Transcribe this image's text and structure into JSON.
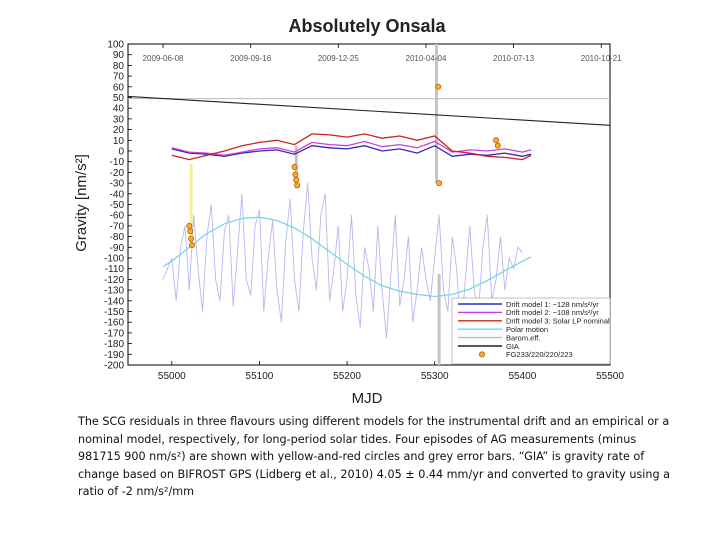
{
  "chart_data": {
    "type": "line",
    "title": "Absolutely Onsala",
    "xlabel": "MJD",
    "ylabel": "Gravity [nm/s²]",
    "xlim": [
      54950,
      55500
    ],
    "ylim": [
      -200,
      100
    ],
    "x_ticks": [
      "55000",
      "55100",
      "55200",
      "55300",
      "55400",
      "55500"
    ],
    "y_ticks": [
      "100",
      "90",
      "80",
      "70",
      "60",
      "50",
      "40",
      "30",
      "20",
      "10",
      "0",
      "-10",
      "-20",
      "-30",
      "-40",
      "-50",
      "-60",
      "-70",
      "-80",
      "-90",
      "-100",
      "-110",
      "-120",
      "-130",
      "-140",
      "-150",
      "-160",
      "-170",
      "-180",
      "-190",
      "-200"
    ],
    "top_axis_dates": [
      {
        "label": "2009-06-08",
        "mjd": 54990
      },
      {
        "label": "2009-09-16",
        "mjd": 55090
      },
      {
        "label": "2009-12-25",
        "mjd": 55190
      },
      {
        "label": "2010-04-04",
        "mjd": 55290
      },
      {
        "label": "2010-07-13",
        "mjd": 55390
      },
      {
        "label": "2010-10-21",
        "mjd": 55490
      }
    ],
    "legend_position": "bottom-right",
    "series": [
      {
        "name": "Drift model 1: −128 nm/s²/yr",
        "color": "#2b2bb8",
        "x": [
          55000,
          55020,
          55040,
          55060,
          55080,
          55100,
          55120,
          55140,
          55160,
          55180,
          55200,
          55220,
          55240,
          55260,
          55280,
          55300,
          55320,
          55340,
          55360,
          55380,
          55400,
          55410
        ],
        "y": [
          2,
          -2,
          -3,
          -5,
          -2,
          0,
          1,
          -3,
          5,
          3,
          2,
          5,
          0,
          2,
          -2,
          5,
          -5,
          -3,
          -4,
          -2,
          -5,
          -3
        ]
      },
      {
        "name": "Drift model 2: −108 nm/s²/yr",
        "color": "#d13fd1",
        "x": [
          55000,
          55020,
          55040,
          55060,
          55080,
          55100,
          55120,
          55140,
          55160,
          55180,
          55200,
          55220,
          55240,
          55260,
          55280,
          55300,
          55320,
          55340,
          55360,
          55380,
          55400,
          55410
        ],
        "y": [
          3,
          -1,
          -2,
          -4,
          -1,
          2,
          3,
          -1,
          8,
          6,
          5,
          9,
          4,
          6,
          3,
          9,
          -1,
          1,
          0,
          2,
          -1,
          1
        ]
      },
      {
        "name": "Drift model 3: Solar LP nominal",
        "color": "#cc2222",
        "x": [
          55000,
          55020,
          55040,
          55060,
          55080,
          55100,
          55120,
          55140,
          55160,
          55180,
          55200,
          55220,
          55240,
          55260,
          55280,
          55300,
          55320,
          55340,
          55360,
          55380,
          55400,
          55410
        ],
        "y": [
          -4,
          -8,
          -4,
          0,
          5,
          8,
          10,
          6,
          16,
          15,
          13,
          16,
          12,
          14,
          10,
          14,
          0,
          -2,
          -5,
          -6,
          -8,
          -4
        ]
      },
      {
        "name": "Polar motion",
        "color": "#7fd3e3",
        "x": [
          54990,
          55000,
          55020,
          55040,
          55060,
          55080,
          55100,
          55120,
          55140,
          55160,
          55180,
          55200,
          55220,
          55240,
          55260,
          55280,
          55300,
          55320,
          55340,
          55360,
          55380,
          55400,
          55410
        ],
        "y": [
          -108,
          -103,
          -90,
          -77,
          -68,
          -63,
          -62,
          -65,
          -72,
          -82,
          -94,
          -106,
          -117,
          -126,
          -131,
          -134,
          -136,
          -134,
          -129,
          -121,
          -112,
          -103,
          -99
        ]
      },
      {
        "name": "Barom.eff.",
        "color": "#b7b7ee",
        "x": [
          54990,
          55000,
          55005,
          55010,
          55015,
          55020,
          55025,
          55030,
          55035,
          55040,
          55045,
          55050,
          55055,
          55060,
          55065,
          55070,
          55075,
          55080,
          55085,
          55090,
          55095,
          55100,
          55105,
          55110,
          55115,
          55120,
          55125,
          55130,
          55135,
          55140,
          55145,
          55150,
          55155,
          55160,
          55165,
          55170,
          55175,
          55180,
          55185,
          55190,
          55195,
          55200,
          55205,
          55210,
          55215,
          55220,
          55225,
          55230,
          55235,
          55240,
          55245,
          55250,
          55255,
          55260,
          55265,
          55270,
          55275,
          55280,
          55285,
          55290,
          55295,
          55300,
          55305,
          55310,
          55315,
          55320,
          55325,
          55330,
          55335,
          55340,
          55345,
          55350,
          55355,
          55360,
          55365,
          55370,
          55375,
          55380,
          55385,
          55390,
          55395,
          55400
        ],
        "y": [
          -120,
          -100,
          -140,
          -90,
          -70,
          -130,
          -60,
          -110,
          -150,
          -80,
          -50,
          -120,
          -140,
          -75,
          -60,
          -145,
          -95,
          -40,
          -120,
          -135,
          -70,
          -55,
          -150,
          -100,
          -65,
          -130,
          -160,
          -85,
          -45,
          -120,
          -150,
          -75,
          -30,
          -100,
          -130,
          -60,
          -40,
          -140,
          -110,
          -70,
          -150,
          -120,
          -60,
          -135,
          -165,
          -90,
          -110,
          -150,
          -70,
          -130,
          -175,
          -115,
          -60,
          -145,
          -120,
          -80,
          -160,
          -130,
          -90,
          -120,
          -140,
          -100,
          -60,
          -130,
          -150,
          -80,
          -110,
          -170,
          -120,
          -70,
          -130,
          -150,
          -90,
          -60,
          -140,
          -120,
          -80,
          -130,
          -100,
          -110,
          -90,
          -95
        ]
      },
      {
        "name": "GIA",
        "color": "#222222",
        "x": [
          54950,
          55500
        ],
        "y": [
          51,
          24
        ]
      },
      {
        "name": "FG233/220/220/223",
        "color": "#f2b227",
        "x": [
          55020,
          55021,
          55022,
          55023,
          55140,
          55141,
          55142,
          55143,
          55304,
          55305,
          55370,
          55372
        ],
        "y": [
          -70,
          -75,
          -82,
          -88,
          -15,
          -22,
          -27,
          -32,
          60,
          -30,
          10,
          5
        ]
      }
    ],
    "reference_line": {
      "y": 49,
      "color": "#bbbbbb"
    },
    "error_bars": [
      {
        "x": 55022,
        "y_low": -90,
        "y_high": -12,
        "color": "#f5f08a"
      },
      {
        "x": 55142,
        "y_low": -35,
        "y_high": 5,
        "color": "#c4c4c4"
      },
      {
        "x": 55302,
        "y_low": -30,
        "y_high": 100,
        "color": "#c4c4c4"
      },
      {
        "x": 55305,
        "y_low": -200,
        "y_high": -115,
        "color": "#c4c4c4"
      }
    ]
  },
  "caption": "The SCG residuals in three flavours using different models for the instrumental drift and an empirical or a nominal model, respectively, for long-period solar tides. Four episodes of AG measurements (minus 981715 900 nm/s²) are shown with yellow-and-red circles and grey error bars. “GIA” is gravity rate of change based on BIFROST GPS (Lidberg et al., 2010) 4.05 ± 0.44 mm/yr and converted to gravity using a ratio of -2 nm/s²/mm"
}
